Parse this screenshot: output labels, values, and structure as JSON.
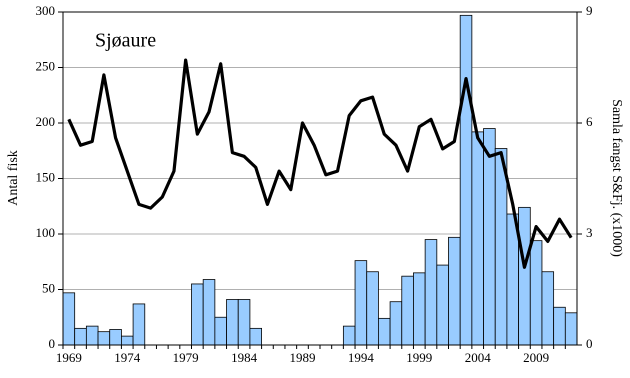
{
  "chart_data": {
    "type": "bar-line",
    "annotation": "Sjøaure",
    "y_label": "Antal fisk",
    "y2_label": "Samla fangst S&Fj. (x1000)",
    "categories": [
      "1969",
      null,
      null,
      null,
      null,
      "1974",
      null,
      null,
      null,
      null,
      "1979",
      null,
      null,
      null,
      null,
      "1984",
      null,
      null,
      null,
      null,
      "1989",
      null,
      null,
      null,
      null,
      "1994",
      null,
      null,
      null,
      null,
      "1999",
      null,
      null,
      null,
      null,
      "2004",
      null,
      null,
      null,
      null,
      "2009",
      null,
      null,
      null
    ],
    "ylim": [
      0,
      300
    ],
    "yticks": [
      0,
      50,
      100,
      150,
      200,
      250,
      300
    ],
    "y2lim": [
      0,
      9
    ],
    "y2ticks": [
      0,
      3,
      6,
      9
    ],
    "grid": true,
    "series": [
      {
        "name": "Antal fisk",
        "type": "bar",
        "color": "#99ccff",
        "values": [
          47,
          15,
          17,
          12,
          14,
          8,
          37,
          0,
          0,
          0,
          0,
          55,
          59,
          25,
          41,
          41,
          15,
          0,
          0,
          0,
          0,
          0,
          0,
          0,
          17,
          76,
          66,
          24,
          39,
          62,
          65,
          95,
          72,
          97,
          297,
          192,
          195,
          177,
          118,
          124,
          94,
          66,
          34,
          29
        ]
      },
      {
        "name": "Samla fangst S&Fj.",
        "type": "line",
        "color": "#000000",
        "axis": "y2",
        "values": [
          6.1,
          5.4,
          5.5,
          7.3,
          5.6,
          4.7,
          3.8,
          3.7,
          4.0,
          4.7,
          7.7,
          5.7,
          6.3,
          7.6,
          5.2,
          5.1,
          4.8,
          3.8,
          4.7,
          4.2,
          6.0,
          5.4,
          4.6,
          4.7,
          6.2,
          6.6,
          6.7,
          5.7,
          5.4,
          4.7,
          5.9,
          6.1,
          5.3,
          5.5,
          7.2,
          5.6,
          5.1,
          5.2,
          3.8,
          2.1,
          3.2,
          2.8,
          3.4,
          2.9
        ]
      }
    ]
  }
}
